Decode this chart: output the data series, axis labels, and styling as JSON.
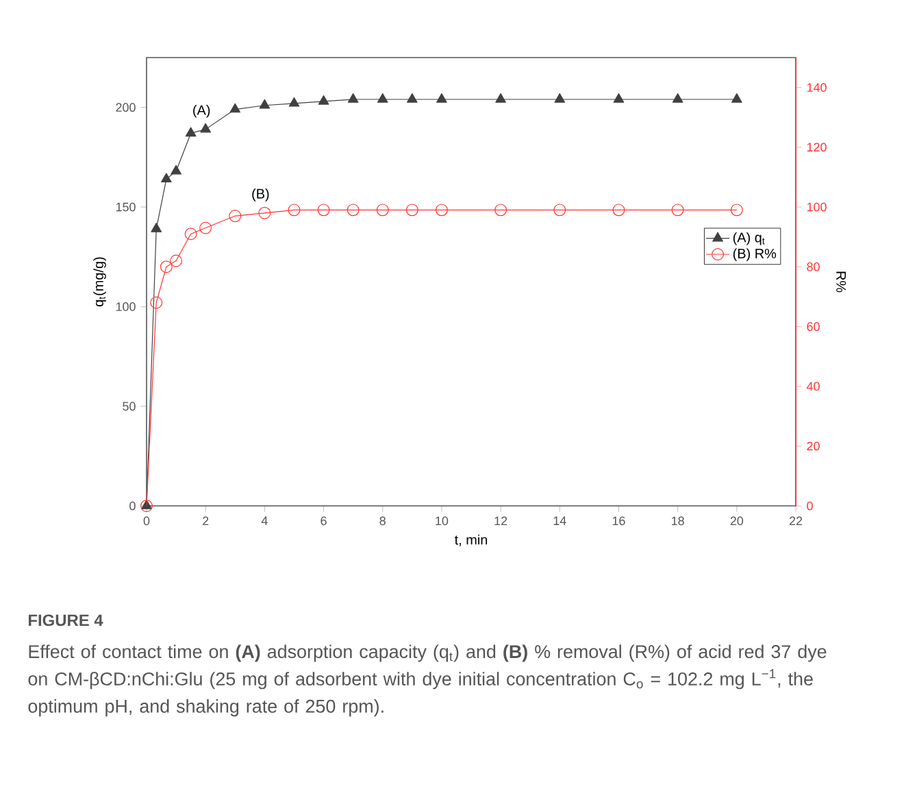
{
  "chart_data": {
    "type": "line",
    "title": "FIGURE 4",
    "subtitle": "Effect of contact time on **(A)** adsorption capacity (q$_{t}$) and **(B)** % removal (R%) of acid red 37 dye on CM-βCD:nChi:Glu (25 mg of adsorbent with dye initial concentration C$_{o}$ = 102.2 mg L$^{−1}$, the optimum pH, and shaking rate of 250 rpm).",
    "xlabel": "t, min",
    "ylabel": "q$_{t}$(mg/g)",
    "y2label": "R%",
    "x": [
      0,
      0.33,
      0.67,
      1,
      1.5,
      2,
      3,
      4,
      5,
      6,
      7,
      8,
      9,
      10,
      12,
      14,
      16,
      18,
      20
    ],
    "series": [
      {
        "name": "(A) q$_{t}$",
        "color": "#404040",
        "marker": "triangle",
        "values": [
          0,
          139,
          164,
          168,
          187,
          189,
          199,
          201,
          202,
          203,
          204,
          204,
          204,
          204,
          204,
          204,
          204,
          204,
          204
        ]
      },
      {
        "name": "(B) R%",
        "color": "#ff3333",
        "marker": "circle",
        "axis": "y2",
        "values": [
          0,
          68,
          80,
          82,
          91,
          93,
          97,
          98,
          99,
          99,
          99,
          99,
          99,
          99,
          99,
          99,
          99,
          99,
          99
        ]
      }
    ],
    "annotations": [
      "(A)",
      "(B)"
    ],
    "xlim": [
      0,
      22
    ],
    "xticks": [
      0,
      2,
      4,
      6,
      8,
      10,
      12,
      14,
      16,
      18,
      20,
      22
    ],
    "ylim": [
      0,
      225
    ],
    "yticks": [
      0,
      50,
      100,
      150,
      200
    ],
    "y2lim": [
      0,
      150
    ],
    "y2ticks": [
      0,
      20,
      40,
      60,
      80,
      100,
      120,
      140
    ],
    "legend": "right",
    "line_style": "solid",
    "grid": false
  }
}
